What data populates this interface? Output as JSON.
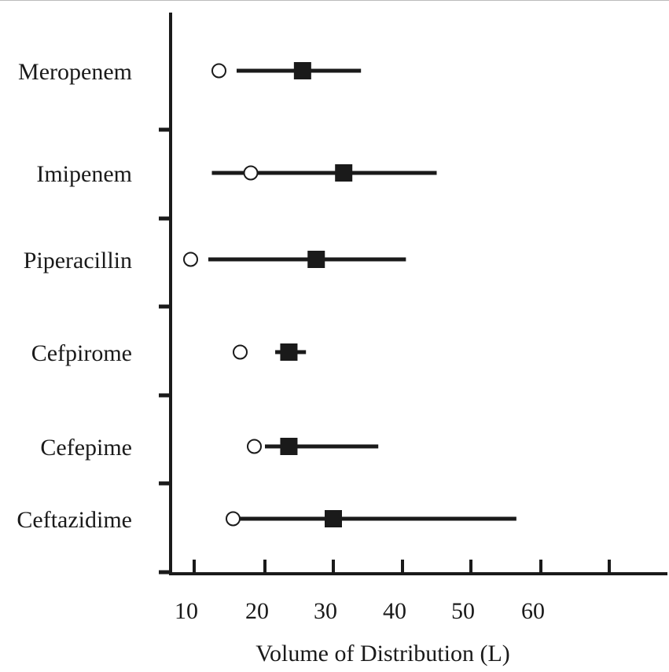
{
  "chart_data": {
    "type": "scatter",
    "orientation": "horizontal-forest",
    "xlabel": "Volume of Distribution (L)",
    "ylabel": "",
    "title": "",
    "xlim": [
      8,
      70
    ],
    "x_ticks": [
      10,
      20,
      30,
      40,
      50,
      60,
      70
    ],
    "x_tick_labels": [
      "10",
      "20",
      "30",
      "40",
      "50",
      "60",
      ""
    ],
    "categories": [
      "Meropenem",
      "Imipenem",
      "Piperacillin",
      "Cefpirome",
      "Cefepime",
      "Ceftazidime"
    ],
    "series": [
      {
        "marker": "open-circle",
        "values": [
          13.5,
          18.0,
          9.5,
          16.5,
          18.5,
          15.5
        ]
      },
      {
        "marker": "filled-square",
        "values": [
          25.5,
          31.5,
          27.5,
          23.5,
          23.5,
          30.0
        ],
        "range_low": [
          16.0,
          12.5,
          12.0,
          21.5,
          20.0,
          15.0
        ],
        "range_high": [
          34.0,
          45.0,
          40.5,
          26.0,
          36.5,
          56.5
        ]
      }
    ],
    "grid": false,
    "legend": "none",
    "colors": {
      "ink": "#1a1a1a"
    }
  }
}
